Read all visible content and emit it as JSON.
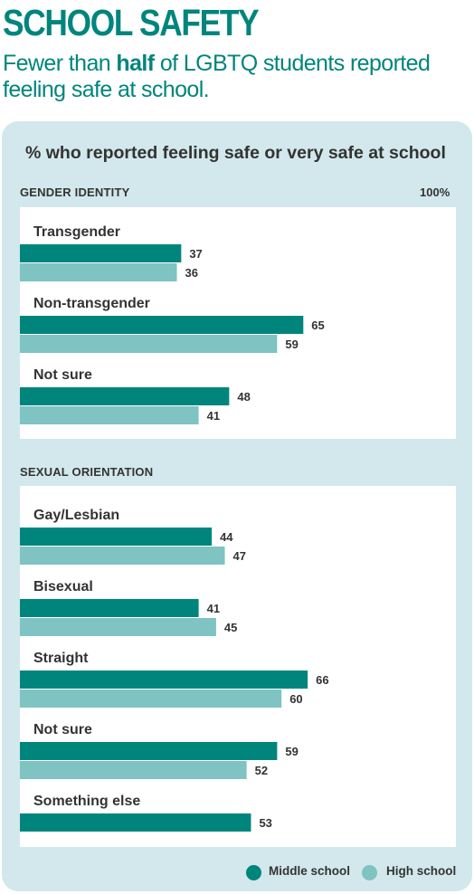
{
  "header": {
    "title": "SCHOOL SAFETY",
    "subtitle_pre": "Fewer than ",
    "subtitle_bold": "half",
    "subtitle_post": " of LGBTQ students reported feeling safe at school."
  },
  "chart_data": {
    "type": "bar",
    "orientation": "horizontal",
    "title": "% who reported feeling safe or very safe at school",
    "xlim": [
      0,
      100
    ],
    "max_label": "100%",
    "legend_position": "bottom-right",
    "series": [
      {
        "name": "Middle school",
        "color": "#00857c"
      },
      {
        "name": "High school",
        "color": "#7fc3c3"
      }
    ],
    "groups": [
      {
        "label": "GENDER IDENTITY",
        "categories": [
          {
            "label": "Transgender",
            "values": [
              37,
              36
            ]
          },
          {
            "label": "Non-transgender",
            "values": [
              65,
              59
            ]
          },
          {
            "label": "Not sure",
            "values": [
              48,
              41
            ]
          }
        ]
      },
      {
        "label": "SEXUAL ORIENTATION",
        "categories": [
          {
            "label": "Gay/Lesbian",
            "values": [
              44,
              47
            ]
          },
          {
            "label": "Bisexual",
            "values": [
              41,
              45
            ]
          },
          {
            "label": "Straight",
            "values": [
              66,
              60
            ]
          },
          {
            "label": "Not sure",
            "values": [
              59,
              52
            ]
          },
          {
            "label": "Something else",
            "values": [
              53
            ]
          }
        ]
      }
    ]
  }
}
